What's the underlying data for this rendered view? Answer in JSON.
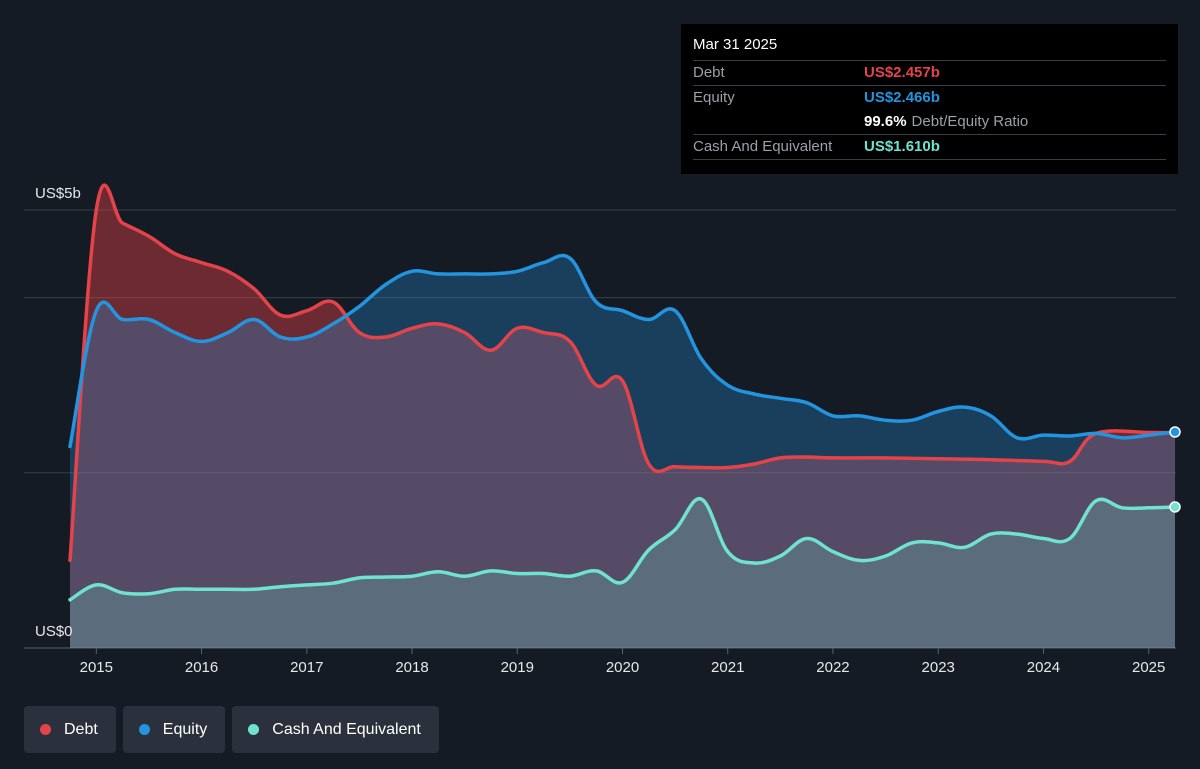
{
  "tooltip": {
    "date": "Mar 31 2025",
    "debt_label": "Debt",
    "debt_value": "US$2.457b",
    "equity_label": "Equity",
    "equity_value": "US$2.466b",
    "ratio_value": "99.6%",
    "ratio_label": "Debt/Equity Ratio",
    "cash_label": "Cash And Equivalent",
    "cash_value": "US$1.610b"
  },
  "legend": {
    "debt": "Debt",
    "equity": "Equity",
    "cash": "Cash And Equivalent"
  },
  "colors": {
    "debt": "#e5434a",
    "equity": "#2394df",
    "cash": "#6fe3cf"
  },
  "chart_data": {
    "type": "area",
    "title": "",
    "xlabel": "",
    "ylabel": "",
    "y_top_label": "US$5b",
    "y_bottom_label": "US$0",
    "ylim": [
      0,
      5
    ],
    "xlim": [
      2014.75,
      2025.25
    ],
    "x_ticks": [
      "2015",
      "2016",
      "2017",
      "2018",
      "2019",
      "2020",
      "2021",
      "2022",
      "2023",
      "2024",
      "2025"
    ],
    "grid": true,
    "legend_position": "bottom-left",
    "series": [
      {
        "name": "Debt",
        "points": [
          [
            2014.75,
            1.0
          ],
          [
            2015.0,
            5.0
          ],
          [
            2015.25,
            4.85
          ],
          [
            2015.5,
            4.7
          ],
          [
            2015.75,
            4.5
          ],
          [
            2016.0,
            4.4
          ],
          [
            2016.25,
            4.3
          ],
          [
            2016.5,
            4.1
          ],
          [
            2016.75,
            3.8
          ],
          [
            2017.0,
            3.85
          ],
          [
            2017.25,
            3.95
          ],
          [
            2017.5,
            3.6
          ],
          [
            2017.75,
            3.55
          ],
          [
            2018.0,
            3.65
          ],
          [
            2018.25,
            3.7
          ],
          [
            2018.5,
            3.6
          ],
          [
            2018.75,
            3.4
          ],
          [
            2019.0,
            3.65
          ],
          [
            2019.25,
            3.6
          ],
          [
            2019.5,
            3.5
          ],
          [
            2019.75,
            3.0
          ],
          [
            2020.0,
            3.05
          ],
          [
            2020.25,
            2.1
          ],
          [
            2020.5,
            2.07
          ],
          [
            2020.75,
            2.06
          ],
          [
            2021.0,
            2.06
          ],
          [
            2021.25,
            2.1
          ],
          [
            2021.5,
            2.17
          ],
          [
            2021.75,
            2.18
          ],
          [
            2022.0,
            2.17
          ],
          [
            2022.5,
            2.17
          ],
          [
            2023.0,
            2.16
          ],
          [
            2023.5,
            2.15
          ],
          [
            2024.0,
            2.13
          ],
          [
            2024.25,
            2.13
          ],
          [
            2024.5,
            2.45
          ],
          [
            2025.0,
            2.46
          ],
          [
            2025.25,
            2.457
          ]
        ]
      },
      {
        "name": "Equity",
        "points": [
          [
            2014.75,
            2.3
          ],
          [
            2015.0,
            3.85
          ],
          [
            2015.25,
            3.75
          ],
          [
            2015.5,
            3.75
          ],
          [
            2015.75,
            3.6
          ],
          [
            2016.0,
            3.5
          ],
          [
            2016.25,
            3.6
          ],
          [
            2016.5,
            3.75
          ],
          [
            2016.75,
            3.55
          ],
          [
            2017.0,
            3.55
          ],
          [
            2017.25,
            3.7
          ],
          [
            2017.5,
            3.9
          ],
          [
            2017.75,
            4.15
          ],
          [
            2018.0,
            4.3
          ],
          [
            2018.25,
            4.27
          ],
          [
            2018.5,
            4.27
          ],
          [
            2018.75,
            4.27
          ],
          [
            2019.0,
            4.3
          ],
          [
            2019.25,
            4.4
          ],
          [
            2019.5,
            4.45
          ],
          [
            2019.75,
            3.95
          ],
          [
            2020.0,
            3.85
          ],
          [
            2020.25,
            3.75
          ],
          [
            2020.5,
            3.85
          ],
          [
            2020.75,
            3.3
          ],
          [
            2021.0,
            3.0
          ],
          [
            2021.25,
            2.9
          ],
          [
            2021.5,
            2.85
          ],
          [
            2021.75,
            2.8
          ],
          [
            2022.0,
            2.65
          ],
          [
            2022.25,
            2.65
          ],
          [
            2022.5,
            2.6
          ],
          [
            2022.75,
            2.6
          ],
          [
            2023.0,
            2.7
          ],
          [
            2023.25,
            2.75
          ],
          [
            2023.5,
            2.65
          ],
          [
            2023.75,
            2.4
          ],
          [
            2024.0,
            2.43
          ],
          [
            2024.25,
            2.42
          ],
          [
            2024.5,
            2.45
          ],
          [
            2024.75,
            2.4
          ],
          [
            2025.0,
            2.43
          ],
          [
            2025.25,
            2.466
          ]
        ]
      },
      {
        "name": "Cash And Equivalent",
        "points": [
          [
            2014.75,
            0.55
          ],
          [
            2015.0,
            0.72
          ],
          [
            2015.25,
            0.63
          ],
          [
            2015.5,
            0.62
          ],
          [
            2015.75,
            0.67
          ],
          [
            2016.0,
            0.67
          ],
          [
            2016.25,
            0.67
          ],
          [
            2016.5,
            0.67
          ],
          [
            2016.75,
            0.7
          ],
          [
            2017.0,
            0.72
          ],
          [
            2017.25,
            0.74
          ],
          [
            2017.5,
            0.8
          ],
          [
            2017.75,
            0.81
          ],
          [
            2018.0,
            0.82
          ],
          [
            2018.25,
            0.87
          ],
          [
            2018.5,
            0.82
          ],
          [
            2018.75,
            0.88
          ],
          [
            2019.0,
            0.85
          ],
          [
            2019.25,
            0.85
          ],
          [
            2019.5,
            0.82
          ],
          [
            2019.75,
            0.88
          ],
          [
            2020.0,
            0.75
          ],
          [
            2020.25,
            1.12
          ],
          [
            2020.5,
            1.35
          ],
          [
            2020.75,
            1.7
          ],
          [
            2021.0,
            1.1
          ],
          [
            2021.25,
            0.97
          ],
          [
            2021.5,
            1.05
          ],
          [
            2021.75,
            1.25
          ],
          [
            2022.0,
            1.1
          ],
          [
            2022.25,
            1.0
          ],
          [
            2022.5,
            1.05
          ],
          [
            2022.75,
            1.2
          ],
          [
            2023.0,
            1.2
          ],
          [
            2023.25,
            1.15
          ],
          [
            2023.5,
            1.3
          ],
          [
            2023.75,
            1.3
          ],
          [
            2024.0,
            1.25
          ],
          [
            2024.25,
            1.25
          ],
          [
            2024.5,
            1.68
          ],
          [
            2024.75,
            1.6
          ],
          [
            2025.0,
            1.6
          ],
          [
            2025.25,
            1.61
          ]
        ]
      }
    ]
  }
}
